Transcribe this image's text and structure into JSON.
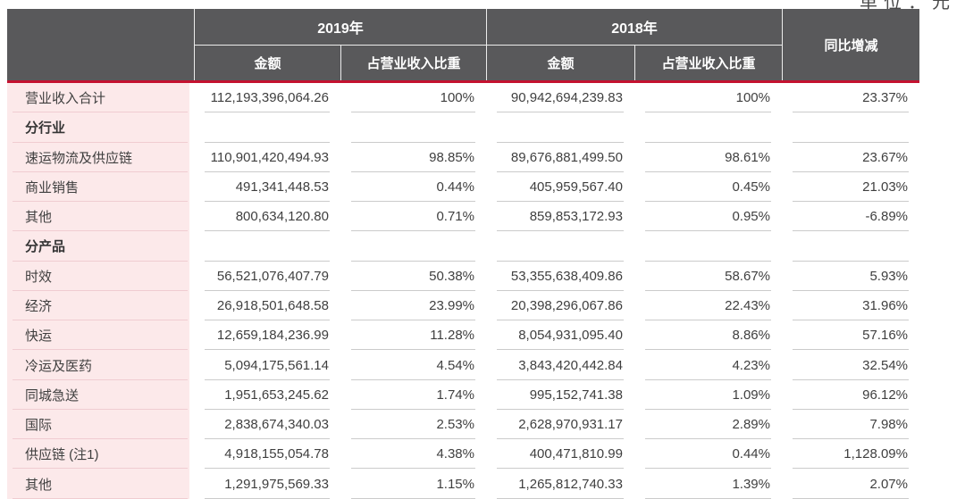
{
  "unit_label": "单位：元",
  "colors": {
    "accent_red": "#c41230",
    "header_bg": "#59595b",
    "row_pink": "#fce9ea",
    "separator_gray": "#cbcbcb",
    "separator_pink": "#f0ccd1"
  },
  "table": {
    "header": {
      "col_2019": "2019年",
      "col_2018": "2018年",
      "yoy": "同比增减",
      "sub": [
        "金额",
        "占营业收入比重",
        "金额",
        "占营业收入比重"
      ]
    },
    "rows": [
      {
        "label": "营业收入合计",
        "bold": false,
        "amount_2019": "112,193,396,064.26",
        "share_2019": "100%",
        "amount_2018": "90,942,694,239.83",
        "share_2018": "100%",
        "yoy": "23.37%"
      },
      {
        "label": "分行业",
        "bold": true,
        "amount_2019": "",
        "share_2019": "",
        "amount_2018": "",
        "share_2018": "",
        "yoy": ""
      },
      {
        "label": "速运物流及供应链",
        "bold": false,
        "amount_2019": "110,901,420,494.93",
        "share_2019": "98.85%",
        "amount_2018": "89,676,881,499.50",
        "share_2018": "98.61%",
        "yoy": "23.67%"
      },
      {
        "label": "商业销售",
        "bold": false,
        "amount_2019": "491,341,448.53",
        "share_2019": "0.44%",
        "amount_2018": "405,959,567.40",
        "share_2018": "0.45%",
        "yoy": "21.03%"
      },
      {
        "label": "其他",
        "bold": false,
        "amount_2019": "800,634,120.80",
        "share_2019": "0.71%",
        "amount_2018": "859,853,172.93",
        "share_2018": "0.95%",
        "yoy": "-6.89%"
      },
      {
        "label": "分产品",
        "bold": true,
        "amount_2019": "",
        "share_2019": "",
        "amount_2018": "",
        "share_2018": "",
        "yoy": ""
      },
      {
        "label": "时效",
        "bold": false,
        "amount_2019": "56,521,076,407.79",
        "share_2019": "50.38%",
        "amount_2018": "53,355,638,409.86",
        "share_2018": "58.67%",
        "yoy": "5.93%"
      },
      {
        "label": "经济",
        "bold": false,
        "amount_2019": "26,918,501,648.58",
        "share_2019": "23.99%",
        "amount_2018": "20,398,296,067.86",
        "share_2018": "22.43%",
        "yoy": "31.96%"
      },
      {
        "label": "快运",
        "bold": false,
        "amount_2019": "12,659,184,236.99",
        "share_2019": "11.28%",
        "amount_2018": "8,054,931,095.40",
        "share_2018": "8.86%",
        "yoy": "57.16%"
      },
      {
        "label": "冷运及医药",
        "bold": false,
        "amount_2019": "5,094,175,561.14",
        "share_2019": "4.54%",
        "amount_2018": "3,843,420,442.84",
        "share_2018": "4.23%",
        "yoy": "32.54%"
      },
      {
        "label": "同城急送",
        "bold": false,
        "amount_2019": "1,951,653,245.62",
        "share_2019": "1.74%",
        "amount_2018": "995,152,741.38",
        "share_2018": "1.09%",
        "yoy": "96.12%"
      },
      {
        "label": "国际",
        "bold": false,
        "amount_2019": "2,838,674,340.03",
        "share_2019": "2.53%",
        "amount_2018": "2,628,970,931.17",
        "share_2018": "2.89%",
        "yoy": "7.98%"
      },
      {
        "label": "供应链 (注1)",
        "bold": false,
        "amount_2019": "4,918,155,054.78",
        "share_2019": "4.38%",
        "amount_2018": "400,471,810.99",
        "share_2018": "0.44%",
        "yoy": "1,128.09%"
      },
      {
        "label": "其他",
        "bold": false,
        "amount_2019": "1,291,975,569.33",
        "share_2019": "1.15%",
        "amount_2018": "1,265,812,740.33",
        "share_2018": "1.39%",
        "yoy": "2.07%"
      }
    ]
  }
}
